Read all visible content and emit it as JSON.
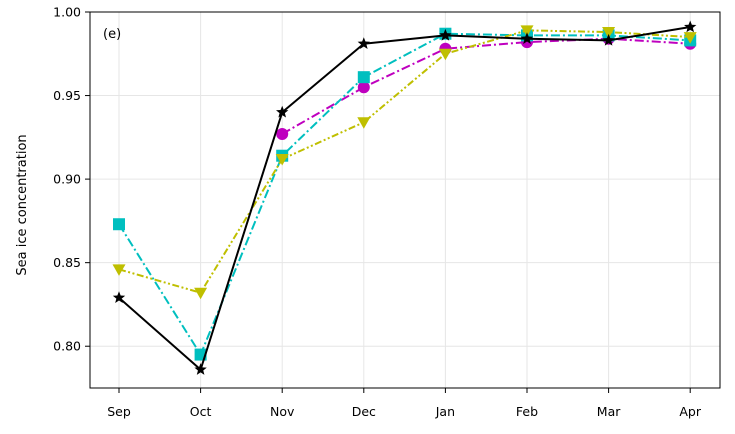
{
  "chart_data": {
    "type": "line",
    "panel_label": "(e)",
    "xlabel": "",
    "ylabel": "Sea ice concentration",
    "categories": [
      "Sep",
      "Oct",
      "Nov",
      "Dec",
      "Jan",
      "Feb",
      "Mar",
      "Apr"
    ],
    "ylim": [
      0.775,
      1.0
    ],
    "yticks": [
      "0.80",
      "0.85",
      "0.90",
      "0.95",
      "1.00"
    ],
    "grid": true,
    "series": [
      {
        "color": "#bf00bf",
        "marker": "circle",
        "line": "dash-dot",
        "values": [
          null,
          null,
          0.927,
          0.955,
          0.978,
          0.982,
          0.984,
          0.981
        ]
      },
      {
        "color": "#00bfbf",
        "marker": "square",
        "line": "dash-dot",
        "values": [
          0.873,
          0.795,
          0.914,
          0.961,
          0.987,
          0.986,
          0.986,
          0.983
        ]
      },
      {
        "color": "#bfbf00",
        "marker": "triangle-down",
        "line": "dash-dot-dot",
        "values": [
          0.846,
          0.832,
          0.912,
          0.934,
          0.975,
          0.989,
          0.988,
          0.985
        ]
      },
      {
        "color": "#000000",
        "marker": "star",
        "line": "solid",
        "values": [
          0.829,
          0.786,
          0.94,
          0.981,
          0.986,
          0.984,
          0.983,
          0.991
        ]
      }
    ]
  }
}
